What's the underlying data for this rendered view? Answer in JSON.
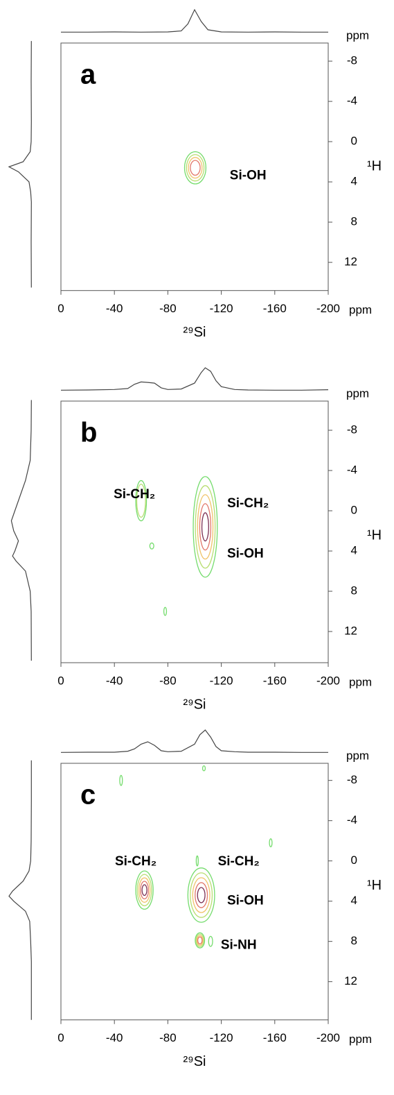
{
  "chart_data": [
    {
      "type": "contour",
      "panel_label": "a",
      "xlabel": "²⁹Si",
      "ylabel": "¹H",
      "x_unit": "ppm",
      "y_unit": "ppm",
      "xlim": [
        0,
        -200
      ],
      "ylim": [
        -9.8,
        14.8
      ],
      "xticks": [
        0,
        -40,
        -80,
        -120,
        -160,
        -200
      ],
      "yticks": [
        -8,
        -4,
        0,
        4,
        8,
        12
      ],
      "contour_colors": [
        "#74dc6c",
        "#b9de72",
        "#f0c36a",
        "#e2776a",
        "#7a2e52"
      ],
      "peaks": [
        {
          "x": -100.5,
          "y": 2.6,
          "wx": 16,
          "wy": 3.2,
          "levels": 4
        }
      ],
      "annotations": [
        {
          "text": "Si-OH",
          "x": -140,
          "y": 3.4
        }
      ],
      "x_projection": {
        "x": [
          0,
          -20,
          -40,
          -60,
          -80,
          -90,
          -95,
          -100,
          -105,
          -110,
          -120,
          -140,
          -160,
          -180,
          -200
        ],
        "values": [
          5,
          5,
          6,
          5,
          6,
          10,
          40,
          100,
          50,
          15,
          6,
          5,
          6,
          5,
          5
        ]
      },
      "y_projection": {
        "y": [
          -10,
          -6,
          -2,
          0,
          1,
          2,
          2.5,
          3,
          4,
          5,
          6,
          10,
          14.5
        ],
        "values": [
          5,
          6,
          5,
          6,
          10,
          40,
          100,
          60,
          15,
          8,
          5,
          6,
          5
        ]
      }
    },
    {
      "type": "contour",
      "panel_label": "b",
      "xlabel": "²⁹Si",
      "ylabel": "¹H",
      "x_unit": "ppm",
      "y_unit": "ppm",
      "xlim": [
        0,
        -200
      ],
      "ylim": [
        -10.9,
        15.1
      ],
      "xticks": [
        0,
        -40,
        -80,
        -120,
        -160,
        -200
      ],
      "yticks": [
        -8,
        -4,
        0,
        4,
        8,
        12
      ],
      "contour_colors": [
        "#74dc6c",
        "#b9de72",
        "#f0c36a",
        "#e2776a",
        "#7a2e52"
      ],
      "peaks": [
        {
          "x": -108,
          "y": 1.6,
          "wx": 18,
          "wy": 10,
          "levels": 5
        },
        {
          "x": -60,
          "y": -1,
          "wx": 8,
          "wy": 4,
          "levels": 2
        },
        {
          "x": -68,
          "y": 3.5,
          "wx": 3,
          "wy": 0.6,
          "levels": 1
        },
        {
          "x": -78,
          "y": 10,
          "wx": 2,
          "wy": 0.8,
          "levels": 1
        }
      ],
      "annotations": [
        {
          "text": "Si-CH₂",
          "x": -55,
          "y": -1.6
        },
        {
          "text": "Si-CH₂",
          "x": -140,
          "y": -0.7
        },
        {
          "text": "Si-OH",
          "x": -138,
          "y": 4.3
        }
      ],
      "x_projection": {
        "x": [
          0,
          -20,
          -40,
          -50,
          -55,
          -60,
          -65,
          -70,
          -75,
          -80,
          -90,
          -100,
          -105,
          -108,
          -112,
          -116,
          -120,
          -130,
          -140,
          -160,
          -180,
          -200
        ],
        "values": [
          5,
          6,
          8,
          12,
          30,
          40,
          38,
          35,
          15,
          8,
          10,
          35,
          80,
          100,
          85,
          45,
          20,
          8,
          6,
          5,
          5,
          7
        ]
      },
      "y_projection": {
        "y": [
          -11,
          -8,
          -5,
          -3,
          -1,
          0,
          1,
          2,
          3,
          4,
          4.5,
          5,
          6,
          8,
          10,
          14.9
        ],
        "values": [
          5,
          6,
          10,
          30,
          60,
          75,
          90,
          80,
          60,
          75,
          85,
          70,
          30,
          10,
          6,
          5
        ]
      }
    },
    {
      "type": "contour",
      "panel_label": "c",
      "xlabel": "²⁹Si",
      "ylabel": "¹H",
      "x_unit": "ppm",
      "y_unit": "ppm",
      "xlim": [
        0,
        -200
      ],
      "ylim": [
        -9.7,
        15.8
      ],
      "xticks": [
        0,
        -40,
        -80,
        -120,
        -160,
        -200
      ],
      "yticks": [
        -8,
        -4,
        0,
        4,
        8,
        12
      ],
      "contour_colors": [
        "#74dc6c",
        "#b9de72",
        "#f0c36a",
        "#e2776a",
        "#7a2e52"
      ],
      "peaks": [
        {
          "x": -62.5,
          "y": 2.9,
          "wx": 13,
          "wy": 3.8,
          "levels": 5
        },
        {
          "x": -105,
          "y": 3.4,
          "wx": 20,
          "wy": 5.4,
          "levels": 5
        },
        {
          "x": -104,
          "y": 7.9,
          "wx": 7,
          "wy": 1.5,
          "levels": 4
        },
        {
          "x": -112,
          "y": 8,
          "wx": 3,
          "wy": 1,
          "levels": 1
        },
        {
          "x": -45,
          "y": -8,
          "wx": 2,
          "wy": 1,
          "levels": 1
        },
        {
          "x": -107,
          "y": -9.2,
          "wx": 2,
          "wy": 0.5,
          "levels": 1
        },
        {
          "x": -157,
          "y": -1.8,
          "wx": 2,
          "wy": 0.8,
          "levels": 1
        },
        {
          "x": -102,
          "y": 0,
          "wx": 1.5,
          "wy": 1,
          "levels": 1
        }
      ],
      "annotations": [
        {
          "text": "Si-CH₂",
          "x": -56,
          "y": 0.1
        },
        {
          "text": "Si-CH₂",
          "x": -133,
          "y": 0.1
        },
        {
          "text": "Si-OH",
          "x": -138,
          "y": 4
        },
        {
          "text": "Si-NH",
          "x": -133,
          "y": 8.4
        }
      ],
      "x_projection": {
        "x": [
          0,
          -20,
          -40,
          -50,
          -55,
          -60,
          -65,
          -70,
          -75,
          -80,
          -90,
          -100,
          -104,
          -108,
          -112,
          -116,
          -120,
          -130,
          -140,
          -160,
          -180,
          -200
        ],
        "values": [
          5,
          6,
          6,
          10,
          20,
          40,
          50,
          35,
          12,
          8,
          10,
          40,
          80,
          100,
          70,
          30,
          12,
          8,
          6,
          6,
          5,
          5
        ]
      },
      "y_projection": {
        "y": [
          -10,
          -6,
          -2,
          0,
          1,
          2,
          3,
          3.5,
          4,
          5,
          6,
          8,
          10,
          15.8
        ],
        "values": [
          5,
          5,
          6,
          8,
          15,
          40,
          85,
          100,
          80,
          30,
          12,
          8,
          5,
          5
        ]
      }
    }
  ]
}
